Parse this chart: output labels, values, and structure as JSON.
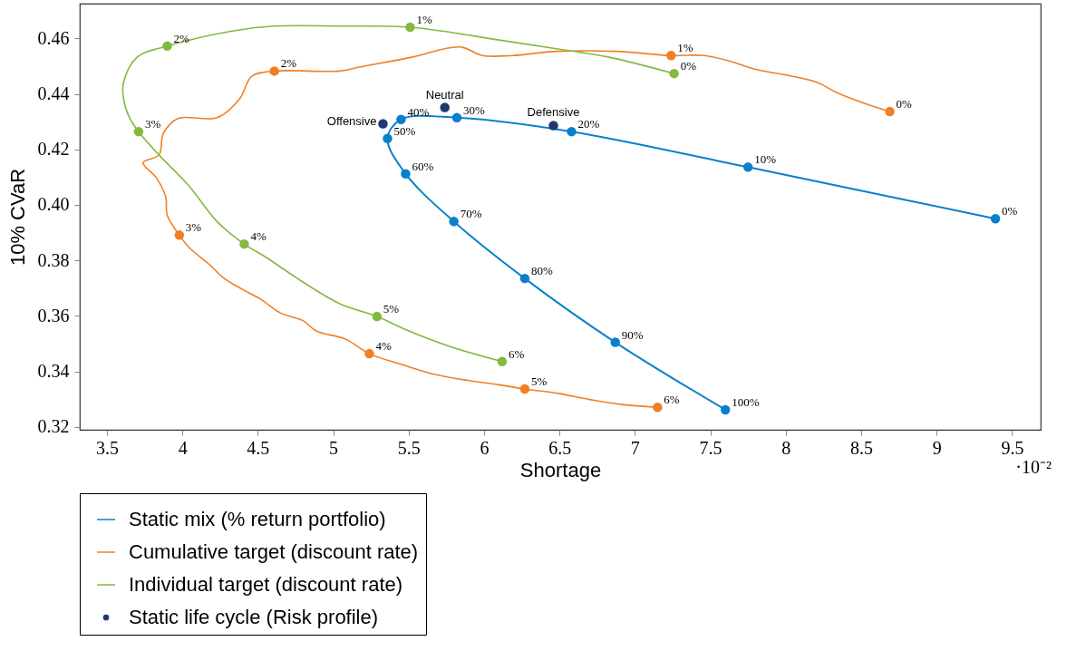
{
  "chart_data": {
    "type": "line",
    "xlabel": "Shortage",
    "ylabel": "10% CVaR",
    "xlim": [
      3.32,
      9.69
    ],
    "ylim": [
      0.319,
      0.4725
    ],
    "xticks": [
      3.5,
      4,
      4.5,
      5,
      5.5,
      6,
      6.5,
      7,
      7.5,
      8,
      8.5,
      9,
      9.5
    ],
    "yticks": [
      0.32,
      0.34,
      0.36,
      0.38,
      {
        "value": 0.4,
        "label": "0.40"
      },
      0.42,
      0.44,
      0.46
    ],
    "legend": "bottom left",
    "annotations": [
      "·10⁻²",
      {
        "text": "0%",
        "x": 9.39,
        "y": 0.395
      },
      {
        "text": "10%",
        "x": 7.75,
        "y": 0.4136
      },
      {
        "text": "20%",
        "x": 6.58,
        "y": 0.4264
      },
      {
        "text": "30%",
        "x": 5.82,
        "y": 0.4314
      },
      {
        "text": "40%",
        "x": 5.45,
        "y": 0.4308
      },
      {
        "text": "50%",
        "x": 5.36,
        "y": 0.4239
      },
      {
        "text": "60%",
        "x": 5.48,
        "y": 0.4112
      },
      {
        "text": "70%",
        "x": 5.8,
        "y": 0.394
      },
      {
        "text": "80%",
        "x": 6.27,
        "y": 0.3735
      },
      {
        "text": "90%",
        "x": 6.87,
        "y": 0.3505
      },
      {
        "text": "100%",
        "x": 7.6,
        "y": 0.3262
      },
      {
        "text": "0%",
        "x": 8.69,
        "y": 0.4336
      },
      {
        "text": "1%",
        "x": 7.24,
        "y": 0.4538
      },
      {
        "text": "2%",
        "x": 4.61,
        "y": 0.4482
      },
      {
        "text": "3%",
        "x": 3.98,
        "y": 0.3891
      },
      {
        "text": "4%",
        "x": 5.24,
        "y": 0.3464
      },
      {
        "text": "5%",
        "x": 6.27,
        "y": 0.3337
      },
      {
        "text": "6%",
        "x": 7.15,
        "y": 0.3271
      },
      {
        "text": "0%",
        "x": 7.26,
        "y": 0.4473
      },
      {
        "text": "1%",
        "x": 5.51,
        "y": 0.464
      },
      {
        "text": "2%",
        "x": 3.9,
        "y": 0.4572
      },
      {
        "text": "3%",
        "x": 3.71,
        "y": 0.4264
      },
      {
        "text": "4%",
        "x": 4.41,
        "y": 0.3859
      },
      {
        "text": "5%",
        "x": 5.29,
        "y": 0.3598
      },
      {
        "text": "6%",
        "x": 6.12,
        "y": 0.3436
      },
      {
        "text": "Offensive",
        "x": 5.33,
        "y": 0.4292
      },
      {
        "text": "Neutral",
        "x": 5.74,
        "y": 0.4351
      },
      {
        "text": "Defensive",
        "x": 6.46,
        "y": 0.4286
      }
    ],
    "series": [
      {
        "name": "Static mix (% return portfolio)",
        "type": "line",
        "color": "#0a80cc",
        "marker": "circle",
        "x": [
          9.39,
          7.75,
          6.58,
          5.82,
          5.45,
          5.36,
          5.48,
          5.8,
          6.27,
          6.87,
          7.6
        ],
        "values": [
          0.395,
          0.4136,
          0.4264,
          0.4314,
          0.4308,
          0.4239,
          0.4112,
          0.394,
          0.3735,
          0.3505,
          0.3262
        ]
      },
      {
        "name": "Cumulative target (discount rate)",
        "type": "line",
        "color": "#f07f26",
        "x": [
          8.69,
          8.53,
          8.34,
          8.21,
          8.02,
          7.8,
          7.64,
          7.46,
          7.24,
          6.87,
          6.48,
          6.19,
          5.99,
          5.84,
          5.52,
          5.18,
          5.04,
          4.61,
          4.46,
          4.38,
          4.23,
          3.97,
          3.875,
          3.845,
          3.74,
          3.83,
          3.89,
          3.9,
          3.98,
          4.05,
          4.18,
          4.27,
          4.4,
          4.52,
          4.65,
          4.8,
          4.89,
          5.08,
          5.24,
          5.46,
          5.67,
          5.89,
          6.1,
          6.27,
          6.49,
          6.7,
          6.91,
          7.15
        ],
        "values": [
          0.4336,
          0.4364,
          0.4404,
          0.4441,
          0.4466,
          0.4488,
          0.4516,
          0.4538,
          0.4538,
          0.4553,
          0.4553,
          0.4538,
          0.4538,
          0.4569,
          0.4532,
          0.4497,
          0.4482,
          0.4482,
          0.4463,
          0.4382,
          0.4314,
          0.4311,
          0.4258,
          0.418,
          0.4152,
          0.4096,
          0.4028,
          0.3962,
          0.3891,
          0.3844,
          0.3785,
          0.3738,
          0.3695,
          0.366,
          0.3611,
          0.3583,
          0.3545,
          0.3517,
          0.3464,
          0.3424,
          0.339,
          0.3368,
          0.3352,
          0.3337,
          0.3321,
          0.3299,
          0.3281,
          0.3271
        ]
      },
      {
        "name": "Individual target (discount rate)",
        "type": "line",
        "color": "#84b93f",
        "x": [
          7.26,
          6.83,
          6.51,
          6.1,
          5.51,
          5.04,
          4.61,
          4.35,
          3.9,
          3.7,
          3.61,
          3.61,
          3.65,
          3.71,
          3.845,
          4.04,
          4.23,
          4.41,
          4.55,
          4.78,
          5.04,
          5.29,
          5.48,
          5.78,
          6.12
        ],
        "values": [
          0.4473,
          0.4532,
          0.456,
          0.4594,
          0.464,
          0.4644,
          0.4644,
          0.4628,
          0.4572,
          0.4532,
          0.4441,
          0.4382,
          0.4314,
          0.4264,
          0.418,
          0.4071,
          0.394,
          0.3859,
          0.3813,
          0.3729,
          0.3645,
          0.3598,
          0.3551,
          0.3489,
          0.3436
        ]
      },
      {
        "type": "scatter",
        "color": "#f07f26",
        "x": [
          8.69,
          7.24,
          4.61,
          3.98,
          5.24,
          6.27,
          7.15
        ],
        "values": [
          0.4336,
          0.4538,
          0.4482,
          0.3891,
          0.3464,
          0.3337,
          0.3271
        ]
      },
      {
        "type": "scatter",
        "color": "#84b93f",
        "x": [
          7.26,
          5.51,
          3.9,
          3.71,
          4.41,
          5.29,
          6.12
        ],
        "values": [
          0.4473,
          0.464,
          0.4572,
          0.4264,
          0.3859,
          0.3598,
          0.3436
        ]
      },
      {
        "name": "Static life cycle (Risk profile)",
        "type": "scatter",
        "color": "#1f3a73",
        "marker": "circle",
        "x": [
          5.33,
          5.74,
          6.46
        ],
        "values": [
          0.4292,
          0.4351,
          0.4286
        ]
      }
    ]
  }
}
